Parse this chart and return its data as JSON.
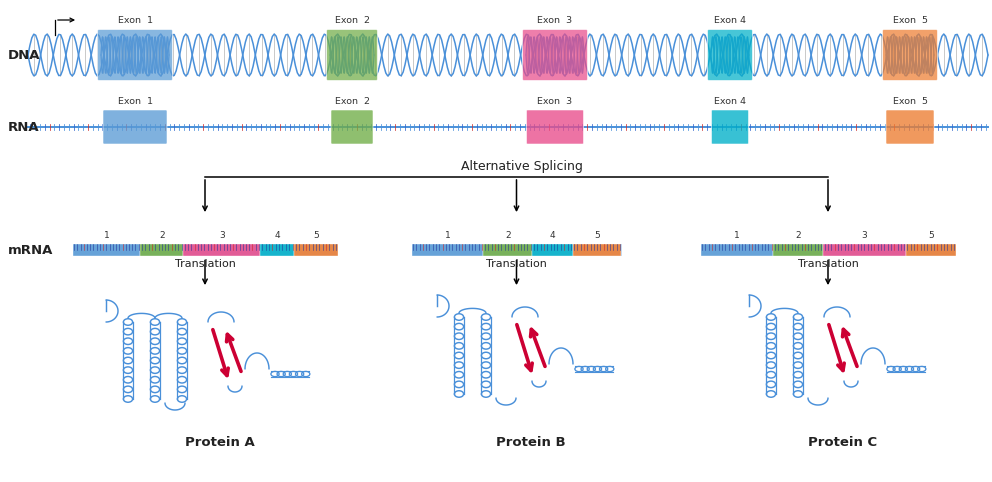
{
  "bg_color": "#ffffff",
  "exon_colors": [
    "#5b9bd5",
    "#70ad47",
    "#e84c8b",
    "#00b0c8",
    "#ed7d31"
  ],
  "exon_labels": [
    "Exon  1",
    "Exon  2",
    "Exon  3",
    "Exon 4",
    "Exon  5"
  ],
  "protein_labels": [
    "Protein A",
    "Protein B",
    "Protein C"
  ],
  "alt_splicing_text": "Alternative Splicing",
  "dna_label": "DNA",
  "rna_label": "RNA",
  "mrna_label": "mRNA",
  "translation_text": "Translation",
  "helix_color": "#4a90d9",
  "helix_color2": "#c0392b",
  "arrow_color": "#cc0033",
  "strand1": "#4a90d9",
  "strand2": "#d9534a"
}
